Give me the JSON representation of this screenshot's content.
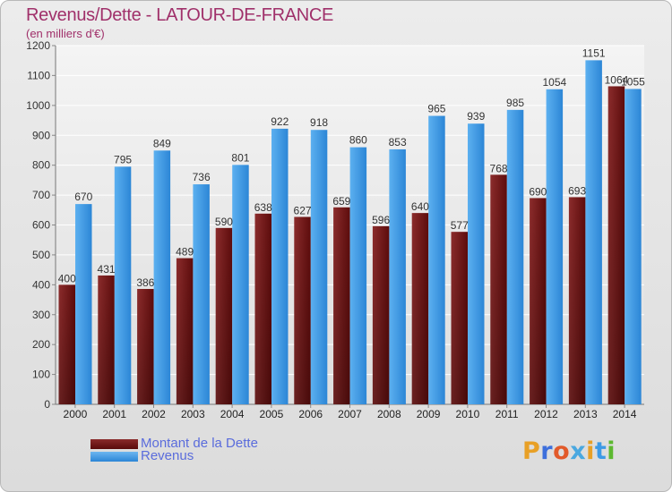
{
  "header": {
    "title": "Revenus/Dette - LATOUR-DE-FRANCE",
    "subtitle": "(en milliers d'€)"
  },
  "legend": [
    {
      "label": "Montant de la Dette",
      "color": "#6e1414"
    },
    {
      "label": "Revenus",
      "color": "#3d9ae6"
    }
  ],
  "logo": {
    "text": "Proxiti"
  },
  "colors": {
    "title": "#a0306a",
    "legend_text": "#5a6cdc",
    "debt_bar": "#6e1414",
    "revenue_bar": "#3d9ae6",
    "logo": [
      "#e8a026",
      "#3d6fdc",
      "#e25a2a",
      "#4aa8e0",
      "#e8a026",
      "#3d9ae6",
      "#5cb830"
    ]
  },
  "chart_data": {
    "type": "bar",
    "title": "Revenus/Dette - LATOUR-DE-FRANCE",
    "ylabel": "(en milliers d'€)",
    "xlabel": "",
    "categories": [
      "2000",
      "2001",
      "2002",
      "2003",
      "2004",
      "2005",
      "2006",
      "2007",
      "2008",
      "2009",
      "2010",
      "2011",
      "2012",
      "2013",
      "2014"
    ],
    "series": [
      {
        "name": "Montant de la Dette",
        "values": [
          400,
          431,
          386,
          489,
          590,
          638,
          627,
          659,
          596,
          640,
          577,
          768,
          690,
          693,
          1064
        ]
      },
      {
        "name": "Revenus",
        "values": [
          670,
          795,
          849,
          736,
          801,
          922,
          918,
          860,
          853,
          965,
          939,
          985,
          1054,
          1151,
          1055
        ]
      }
    ],
    "ylim": [
      0,
      1200
    ],
    "yticks": [
      0,
      100,
      200,
      300,
      400,
      500,
      600,
      700,
      800,
      900,
      1000,
      1100,
      1200
    ],
    "grid": true,
    "legend_position": "bottom-left"
  }
}
